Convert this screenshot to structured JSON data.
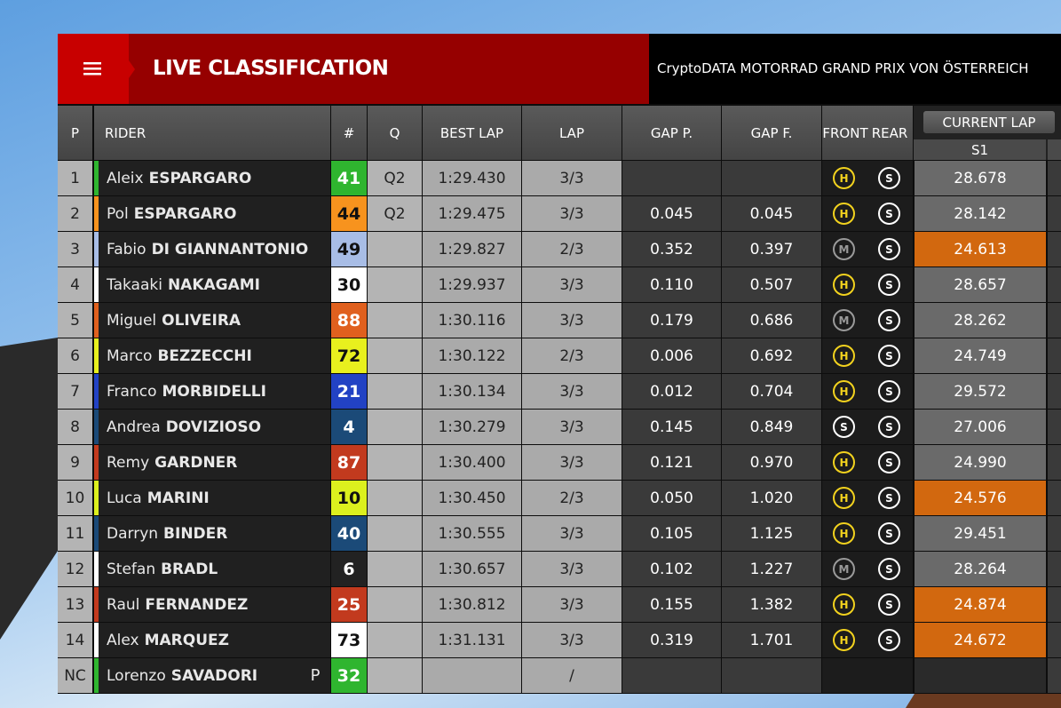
{
  "header": {
    "title": "LIVE CLASSIFICATION",
    "event": "CryptoDATA MOTORRAD GRAND PRIX VON ÖSTERREICH"
  },
  "columns": {
    "pos": "P",
    "rider": "RIDER",
    "number": "#",
    "q": "Q",
    "best": "BEST LAP",
    "lap": "LAP",
    "gap_p": "GAP P.",
    "gap_f": "GAP F.",
    "front": "FRONT",
    "rear": "REAR",
    "current_lap": "CURRENT LAP",
    "s1": "S1"
  },
  "rows": [
    {
      "pos": "1",
      "first": "Aleix",
      "last": "ESPARGARO",
      "number": "41",
      "color": "#2fb52f",
      "q": "Q2",
      "best": "1:29.430",
      "lap": "3/3",
      "front": "H",
      "rear": "S",
      "s1": "28.678"
    },
    {
      "pos": "2",
      "first": "Pol",
      "last": "ESPARGARO",
      "number": "44",
      "color": "#f7931e",
      "q": "Q2",
      "best": "1:29.475",
      "lap": "3/3",
      "gap_p": "0.045",
      "gap_f": "0.045",
      "front": "H",
      "rear": "S",
      "s1": "28.142"
    },
    {
      "pos": "3",
      "first": "Fabio",
      "last": "DI GIANNANTONIO",
      "number": "49",
      "color": "#a8bde6",
      "best": "1:29.827",
      "lap": "2/3",
      "gap_p": "0.352",
      "gap_f": "0.397",
      "front": "M",
      "rear": "S",
      "s1": "24.613",
      "s1_color": "#d2680f"
    },
    {
      "pos": "4",
      "first": "Takaaki",
      "last": "NAKAGAMI",
      "number": "30",
      "color": "#ffffff",
      "best": "1:29.937",
      "lap": "3/3",
      "gap_p": "0.110",
      "gap_f": "0.507",
      "front": "H",
      "rear": "S",
      "s1": "28.657"
    },
    {
      "pos": "5",
      "first": "Miguel",
      "last": "OLIVEIRA",
      "number": "88",
      "color": "#e0601e",
      "best": "1:30.116",
      "lap": "3/3",
      "gap_p": "0.179",
      "gap_f": "0.686",
      "front": "M",
      "rear": "S",
      "s1": "28.262"
    },
    {
      "pos": "6",
      "first": "Marco",
      "last": "BEZZECCHI",
      "number": "72",
      "color": "#e8f01e",
      "best": "1:30.122",
      "lap": "2/3",
      "gap_p": "0.006",
      "gap_f": "0.692",
      "front": "H",
      "rear": "S",
      "s1": "24.749"
    },
    {
      "pos": "7",
      "first": "Franco",
      "last": "MORBIDELLI",
      "number": "21",
      "color": "#2242c4",
      "best": "1:30.134",
      "lap": "3/3",
      "gap_p": "0.012",
      "gap_f": "0.704",
      "front": "H",
      "rear": "S",
      "s1": "29.572"
    },
    {
      "pos": "8",
      "first": "Andrea",
      "last": "DOVIZIOSO",
      "number": "4",
      "color": "#1b4a78",
      "best": "1:30.279",
      "lap": "3/3",
      "gap_p": "0.145",
      "gap_f": "0.849",
      "front": "S",
      "rear": "S",
      "s1": "27.006"
    },
    {
      "pos": "9",
      "first": "Remy",
      "last": "GARDNER",
      "number": "87",
      "color": "#c23a1e",
      "best": "1:30.400",
      "lap": "3/3",
      "gap_p": "0.121",
      "gap_f": "0.970",
      "front": "H",
      "rear": "S",
      "s1": "24.990"
    },
    {
      "pos": "10",
      "first": "Luca",
      "last": "MARINI",
      "number": "10",
      "color": "#dcf01e",
      "best": "1:30.450",
      "lap": "2/3",
      "gap_p": "0.050",
      "gap_f": "1.020",
      "front": "H",
      "rear": "S",
      "s1": "24.576",
      "s1_color": "#d2680f"
    },
    {
      "pos": "11",
      "first": "Darryn",
      "last": "BINDER",
      "number": "40",
      "color": "#1b4a78",
      "best": "1:30.555",
      "lap": "3/3",
      "gap_p": "0.105",
      "gap_f": "1.125",
      "front": "H",
      "rear": "S",
      "s1": "29.451"
    },
    {
      "pos": "12",
      "first": "Stefan",
      "last": "BRADL",
      "number": "6",
      "color": "#ffffff",
      "box_color": "#222222",
      "best": "1:30.657",
      "lap": "3/3",
      "gap_p": "0.102",
      "gap_f": "1.227",
      "front": "M",
      "rear": "S",
      "s1": "28.264"
    },
    {
      "pos": "13",
      "first": "Raul",
      "last": "FERNANDEZ",
      "number": "25",
      "color": "#c23a1e",
      "best": "1:30.812",
      "lap": "3/3",
      "gap_p": "0.155",
      "gap_f": "1.382",
      "front": "H",
      "rear": "S",
      "s1": "24.874",
      "s1_color": "#d2680f"
    },
    {
      "pos": "14",
      "first": "Alex",
      "last": "MARQUEZ",
      "number": "73",
      "color": "#ffffff",
      "best": "1:31.131",
      "lap": "3/3",
      "gap_p": "0.319",
      "gap_f": "1.701",
      "front": "H",
      "rear": "S",
      "s1": "24.672",
      "s1_color": "#d2680f"
    },
    {
      "pos": "NC",
      "first": "Lorenzo",
      "last": "SAVADORI",
      "flag": "P",
      "number": "32",
      "color": "#2fb52f",
      "lap": "/"
    }
  ]
}
